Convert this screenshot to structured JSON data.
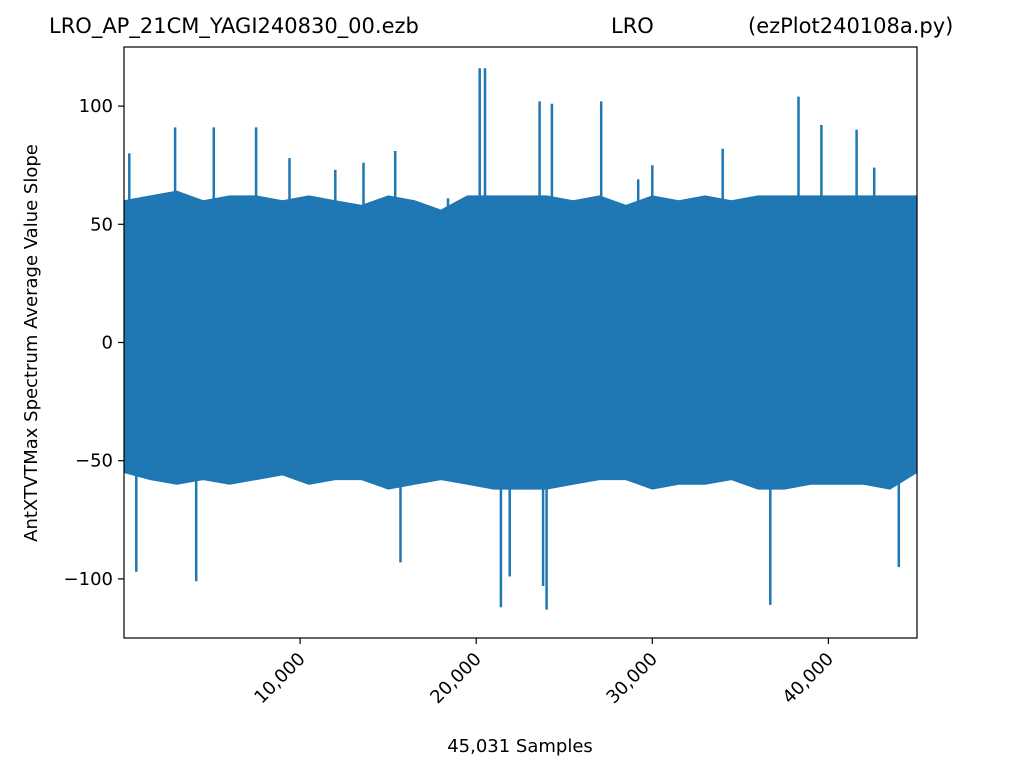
{
  "header": {
    "file_name": "LRO_AP_21CM_YAGI240830_00.ezb",
    "station": "LRO",
    "program": "(ezPlot240108a.py)"
  },
  "chart_data": {
    "type": "line",
    "title": "LRO_AP_21CM_YAGI240830_00.ezb LRO (ezPlot240108a.py)",
    "xlabel": "45,031 Samples",
    "ylabel": "AntXTVTMax Spectrum Average Value Slope",
    "xlim": [
      0,
      45031
    ],
    "ylim": [
      -125,
      125
    ],
    "xticks": [
      10000,
      20000,
      30000,
      40000
    ],
    "xtick_labels": [
      "10,000",
      "20,000",
      "30,000",
      "40,000"
    ],
    "yticks": [
      -100,
      -50,
      0,
      50,
      100
    ],
    "ytick_labels": [
      "−100",
      "−50",
      "0",
      "50",
      "100"
    ],
    "grid": false,
    "series": [
      {
        "color": "#1f77b4",
        "x": [
          300,
          700,
          2900,
          4100,
          5100,
          7500,
          9400,
          12000,
          13600,
          15400,
          15700,
          18400,
          20200,
          20500,
          21400,
          21900,
          23600,
          23800,
          24000,
          24300,
          27100,
          29200,
          30000,
          34000,
          36700,
          38300,
          39600,
          41600,
          42600,
          44000
        ],
        "y": [
          80,
          -97,
          91,
          -101,
          91,
          91,
          78,
          73,
          76,
          81,
          -93,
          61,
          116,
          116,
          -112,
          -99,
          102,
          -103,
          -113,
          101,
          102,
          69,
          75,
          82,
          -111,
          104,
          92,
          90,
          74,
          -95
        ],
        "envelope_x": [
          0,
          1500,
          3000,
          4500,
          6000,
          7500,
          9000,
          10500,
          12000,
          13500,
          15000,
          16500,
          18000,
          19500,
          21000,
          22500,
          24000,
          25500,
          27000,
          28500,
          30000,
          31500,
          33000,
          34500,
          36000,
          37500,
          39000,
          40500,
          42000,
          43500,
          45031
        ],
        "envelope_upper": [
          60,
          62,
          64,
          60,
          62,
          62,
          60,
          62,
          60,
          58,
          62,
          60,
          56,
          62,
          62,
          62,
          62,
          60,
          62,
          58,
          62,
          60,
          62,
          60,
          62,
          62,
          62,
          62,
          62,
          62,
          62
        ],
        "envelope_lower": [
          -55,
          -58,
          -60,
          -58,
          -60,
          -58,
          -56,
          -60,
          -58,
          -58,
          -62,
          -60,
          -58,
          -60,
          -62,
          -62,
          -62,
          -60,
          -58,
          -58,
          -62,
          -60,
          -60,
          -58,
          -62,
          -62,
          -60,
          -60,
          -60,
          -62,
          -55
        ]
      }
    ]
  }
}
